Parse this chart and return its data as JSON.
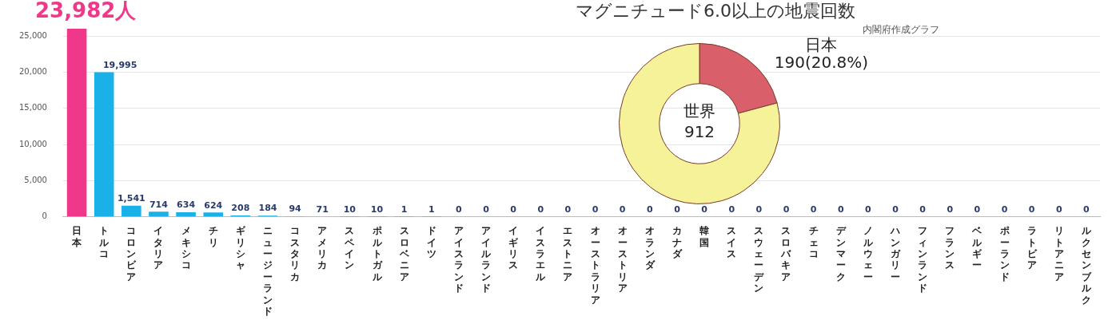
{
  "chart_data": [
    {
      "type": "bar",
      "title": "23,982人",
      "categories": [
        "日本",
        "トルコ",
        "コロンビア",
        "イタリア",
        "メキシコ",
        "チリ",
        "ギリシャ",
        "ニュージーランド",
        "コスタリカ",
        "アメリカ",
        "スペイン",
        "ポルトガル",
        "スロベニア",
        "ドイツ",
        "アイスランド",
        "アイルランド",
        "イギリス",
        "イスラエル",
        "エストニア",
        "オーストラリア",
        "オーストリア",
        "オランダ",
        "カナダ",
        "韓国",
        "スイス",
        "スウェーデン",
        "スロバキア",
        "チェコ",
        "デンマーク",
        "ノルウェー",
        "ハンガリー",
        "フィンランド",
        "フランス",
        "ベルギー",
        "ポーランド",
        "ラトビア",
        "リトアニア",
        "ルクセンブルク"
      ],
      "values": [
        26000,
        19995,
        1541,
        714,
        634,
        624,
        208,
        184,
        94,
        71,
        10,
        10,
        1,
        1,
        0,
        0,
        0,
        0,
        0,
        0,
        0,
        0,
        0,
        0,
        0,
        0,
        0,
        0,
        0,
        0,
        0,
        0,
        0,
        0,
        0,
        0,
        0,
        0
      ],
      "value_labels": [
        null,
        "19,995",
        "1,541",
        "714",
        "634",
        "624",
        "208",
        "184",
        "94",
        "71",
        "10",
        "10",
        "1",
        "1",
        "0",
        "0",
        "0",
        "0",
        "0",
        "0",
        "0",
        "0",
        "0",
        "0",
        "0",
        "0",
        "0",
        "0",
        "0",
        "0",
        "0",
        "0",
        "0",
        "0",
        "0",
        "0",
        "0",
        "0"
      ],
      "colors": [
        "#f0388a",
        "#1ab0e8",
        "#1ab0e8",
        "#1ab0e8",
        "#1ab0e8",
        "#1ab0e8",
        "#1ab0e8",
        "#1ab0e8",
        "#1ab0e8",
        "#1ab0e8",
        "#1ab0e8",
        "#1ab0e8",
        "#1ab0e8",
        "#1ab0e8",
        "#1ab0e8",
        "#1ab0e8",
        "#1ab0e8",
        "#1ab0e8",
        "#1ab0e8",
        "#1ab0e8",
        "#1ab0e8",
        "#1ab0e8",
        "#1ab0e8",
        "#1ab0e8",
        "#1ab0e8",
        "#1ab0e8",
        "#1ab0e8",
        "#1ab0e8",
        "#1ab0e8",
        "#1ab0e8",
        "#1ab0e8",
        "#1ab0e8",
        "#1ab0e8",
        "#1ab0e8",
        "#1ab0e8",
        "#1ab0e8",
        "#1ab0e8",
        "#1ab0e8"
      ],
      "ylim": [
        0,
        26000
      ],
      "yticks": [
        0,
        {
          "value": 5000,
          "label": "5,000"
        },
        {
          "value": 10000,
          "label": "10,000"
        },
        {
          "value": 15000,
          "label": "15,000"
        },
        {
          "value": 20000,
          "label": "20,000"
        },
        {
          "value": 25000,
          "label": "25,000"
        }
      ],
      "grid": "y",
      "legend": false
    },
    {
      "type": "donut",
      "title": "マグニチュード6.0以上の地震回数",
      "categories": [
        "日本",
        null
      ],
      "values": [
        190,
        722
      ],
      "value_labels": [
        "190(20.8%)",
        null
      ],
      "colors": [
        "#d9606a",
        "#f5f29a"
      ],
      "annotations": [
        "内閣府作成グラフ",
        "世界",
        "912"
      ],
      "legend": false
    }
  ]
}
